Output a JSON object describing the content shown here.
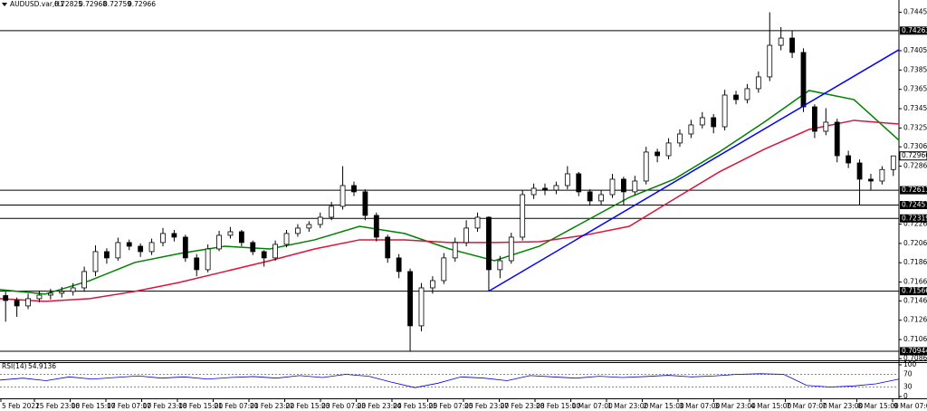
{
  "chart_data": {
    "type": "candlestick",
    "up_color": "#ffffff",
    "down_color": "#000000",
    "line_color": "#000000",
    "ylim": [
      0.7085,
      0.7458
    ],
    "yticks": [
      0.74453,
      0.74055,
      0.73855,
      0.73655,
      0.73455,
      0.73255,
      {
        "value": 0.7306,
        "label": "0.73060"
      },
      {
        "value": 0.7286,
        "label": "0.72860"
      },
      {
        "value": 0.7226,
        "label": "0.72260"
      },
      {
        "value": 0.7206,
        "label": "0.72060"
      },
      {
        "value": 0.7186,
        "label": "0.71860"
      },
      {
        "value": 0.7166,
        "label": "0.71660"
      },
      0.71465,
      0.71265,
      0.71065,
      0.70867
    ],
    "xlabels": [
      "5 Feb 2022",
      "15 Feb 23:00",
      "16 Feb 15:00",
      "17 Feb 07:00",
      "17 Feb 23:00",
      "18 Feb 15:00",
      "21 Feb 07:00",
      "21 Feb 23:00",
      "22 Feb 15:00",
      "23 Feb 07:00",
      "23 Feb 23:00",
      "24 Feb 15:00",
      "25 Feb 07:00",
      "25 Feb 23:00",
      "27 Feb 23:00",
      "28 Feb 15:00",
      "1 Mar 07:00",
      "1 Mar 23:00",
      "2 Mar 15:00",
      "3 Mar 07:00",
      "3 Mar 23:00",
      "4 Mar 15:00",
      "7 Mar 07:00",
      "7 Mar 23:00",
      "8 Mar 15:00",
      "9 Mar 07:00"
    ],
    "series": [
      {
        "name": "AUDUSD.var,H1",
        "ohlc": [
          [
            0.7152,
            0.7156,
            0.7125,
            0.71469
          ],
          [
            0.71469,
            0.715,
            0.713,
            0.71413
          ],
          [
            0.71413,
            0.7154,
            0.7138,
            0.71488
          ],
          [
            0.71488,
            0.7157,
            0.7145,
            0.71525
          ],
          [
            0.71525,
            0.7159,
            0.7148,
            0.71544
          ],
          [
            0.71544,
            0.7161,
            0.715,
            0.71563
          ],
          [
            0.71563,
            0.7165,
            0.7152,
            0.716
          ],
          [
            0.716,
            0.7182,
            0.7156,
            0.71769
          ],
          [
            0.71769,
            0.7204,
            0.7172,
            0.71975
          ],
          [
            0.71975,
            0.7201,
            0.7185,
            0.7191
          ],
          [
            0.7191,
            0.7212,
            0.7188,
            0.72069
          ],
          [
            0.72069,
            0.721,
            0.7199,
            0.72031
          ],
          [
            0.72031,
            0.7206,
            0.7192,
            0.71975
          ],
          [
            0.71975,
            0.7211,
            0.7194,
            0.72069
          ],
          [
            0.72069,
            0.7222,
            0.7203,
            0.72163
          ],
          [
            0.72163,
            0.722,
            0.7208,
            0.72125
          ],
          [
            0.72125,
            0.7215,
            0.7187,
            0.7191
          ],
          [
            0.7191,
            0.7195,
            0.7172,
            0.71788
          ],
          [
            0.71788,
            0.7205,
            0.7176,
            0.72003
          ],
          [
            0.72003,
            0.7219,
            0.7198,
            0.72144
          ],
          [
            0.72144,
            0.7223,
            0.7211,
            0.72181
          ],
          [
            0.72181,
            0.722,
            0.7203,
            0.72069
          ],
          [
            0.72069,
            0.7209,
            0.7194,
            0.71975
          ],
          [
            0.71975,
            0.7199,
            0.7182,
            0.7191
          ],
          [
            0.7191,
            0.7209,
            0.7188,
            0.7205
          ],
          [
            0.7205,
            0.722,
            0.7202,
            0.72163
          ],
          [
            0.72163,
            0.7226,
            0.7213,
            0.72219
          ],
          [
            0.72219,
            0.7229,
            0.7218,
            0.72256
          ],
          [
            0.72256,
            0.7238,
            0.7222,
            0.72331
          ],
          [
            0.72331,
            0.7249,
            0.723,
            0.72444
          ],
          [
            0.72444,
            0.7286,
            0.7241,
            0.72659
          ],
          [
            0.72659,
            0.727,
            0.7255,
            0.72594
          ],
          [
            0.72594,
            0.7262,
            0.723,
            0.7235
          ],
          [
            0.7235,
            0.7238,
            0.7208,
            0.72125
          ],
          [
            0.72125,
            0.7215,
            0.7186,
            0.7191
          ],
          [
            0.7191,
            0.7195,
            0.717,
            0.71769
          ],
          [
            0.71769,
            0.718,
            0.70944,
            0.71207
          ],
          [
            0.71207,
            0.7165,
            0.7115,
            0.716
          ],
          [
            0.716,
            0.7172,
            0.7154,
            0.71675
          ],
          [
            0.71675,
            0.7196,
            0.7164,
            0.7191
          ],
          [
            0.7191,
            0.7212,
            0.7187,
            0.72069
          ],
          [
            0.72069,
            0.723,
            0.7203,
            0.72219
          ],
          [
            0.72219,
            0.7238,
            0.7218,
            0.72331
          ],
          [
            0.72331,
            0.7234,
            0.71566,
            0.71788
          ],
          [
            0.71788,
            0.7193,
            0.717,
            0.71881
          ],
          [
            0.71881,
            0.7217,
            0.7185,
            0.72125
          ],
          [
            0.72125,
            0.7261,
            0.7209,
            0.72565
          ],
          [
            0.72565,
            0.7268,
            0.7252,
            0.72631
          ],
          [
            0.72631,
            0.7268,
            0.7256,
            0.72612
          ],
          [
            0.72612,
            0.727,
            0.7257,
            0.72659
          ],
          [
            0.72659,
            0.7286,
            0.7262,
            0.72781
          ],
          [
            0.72781,
            0.728,
            0.7255,
            0.72594
          ],
          [
            0.72594,
            0.7262,
            0.7245,
            0.725
          ],
          [
            0.725,
            0.7261,
            0.7246,
            0.72565
          ],
          [
            0.72565,
            0.7278,
            0.7253,
            0.72725
          ],
          [
            0.72725,
            0.7275,
            0.72457,
            0.72594
          ],
          [
            0.72594,
            0.7276,
            0.7256,
            0.72706
          ],
          [
            0.72706,
            0.7306,
            0.7267,
            0.73006
          ],
          [
            0.73006,
            0.7304,
            0.729,
            0.72968
          ],
          [
            0.72968,
            0.7315,
            0.7293,
            0.731
          ],
          [
            0.731,
            0.7324,
            0.7306,
            0.73193
          ],
          [
            0.73193,
            0.7334,
            0.7315,
            0.73287
          ],
          [
            0.73287,
            0.7342,
            0.7325,
            0.73362
          ],
          [
            0.73362,
            0.734,
            0.732,
            0.73268
          ],
          [
            0.73268,
            0.7365,
            0.7323,
            0.73596
          ],
          [
            0.73596,
            0.7364,
            0.735,
            0.73549
          ],
          [
            0.73549,
            0.7371,
            0.7351,
            0.73662
          ],
          [
            0.73662,
            0.7384,
            0.7362,
            0.73784
          ],
          [
            0.73784,
            0.74453,
            0.7374,
            0.74111
          ],
          [
            0.74111,
            0.743,
            0.7406,
            0.74186
          ],
          [
            0.74186,
            0.74263,
            0.7398,
            0.74037
          ],
          [
            0.74037,
            0.7408,
            0.7342,
            0.73474
          ],
          [
            0.73474,
            0.735,
            0.7315,
            0.73221
          ],
          [
            0.73221,
            0.7346,
            0.7318,
            0.73315
          ],
          [
            0.73315,
            0.7335,
            0.729,
            0.72968
          ],
          [
            0.72968,
            0.7302,
            0.7284,
            0.72893
          ],
          [
            0.72893,
            0.7293,
            0.72457,
            0.72725
          ],
          [
            0.72725,
            0.7278,
            0.72611,
            0.72706
          ],
          [
            0.72706,
            0.7286,
            0.7267,
            0.72825
          ],
          [
            0.72825,
            0.72968,
            0.72759,
            0.72966
          ]
        ]
      }
    ],
    "moving_averages": [
      {
        "color": "#008000",
        "values": [
          0.71582,
          0.71535,
          0.71675,
          0.71863,
          0.71956,
          0.72031,
          0.72003,
          0.72097,
          0.72237,
          0.72163,
          0.72003,
          0.71881,
          0.72031,
          0.72284,
          0.72537,
          0.72725,
          0.73006,
          0.73315,
          0.73643,
          0.73549,
          0.73128
        ]
      },
      {
        "color": "#dc143c",
        "values": [
          0.71488,
          0.7146,
          0.71488,
          0.71563,
          0.71657,
          0.71769,
          0.71881,
          0.72003,
          0.72097,
          0.72097,
          0.72069,
          0.72069,
          0.72078,
          0.72144,
          0.72237,
          0.72519,
          0.728,
          0.73034,
          0.7324,
          0.73334,
          0.73296
        ]
      }
    ],
    "trendline": {
      "color": "#0000ff",
      "values": [
        0.71566,
        0.74065
      ]
    },
    "levels": [
      0.74263,
      0.72611,
      0.72457,
      0.72319,
      0.71566,
      0.70944
    ],
    "rsi": {
      "name": "RSI(14)",
      "color": "#0000cd",
      "ylim": [
        0,
        100
      ],
      "yticks": [
        100,
        70,
        30,
        0
      ],
      "values": [
        52,
        58,
        50,
        62,
        55,
        60,
        65,
        58,
        62,
        55,
        60,
        63,
        58,
        66,
        60,
        70,
        64,
        45,
        28,
        42,
        62,
        58,
        50,
        66,
        62,
        58,
        64,
        60,
        63,
        67,
        62,
        65,
        70,
        72,
        70,
        35,
        30,
        33,
        40,
        54.9136
      ]
    }
  }
}
